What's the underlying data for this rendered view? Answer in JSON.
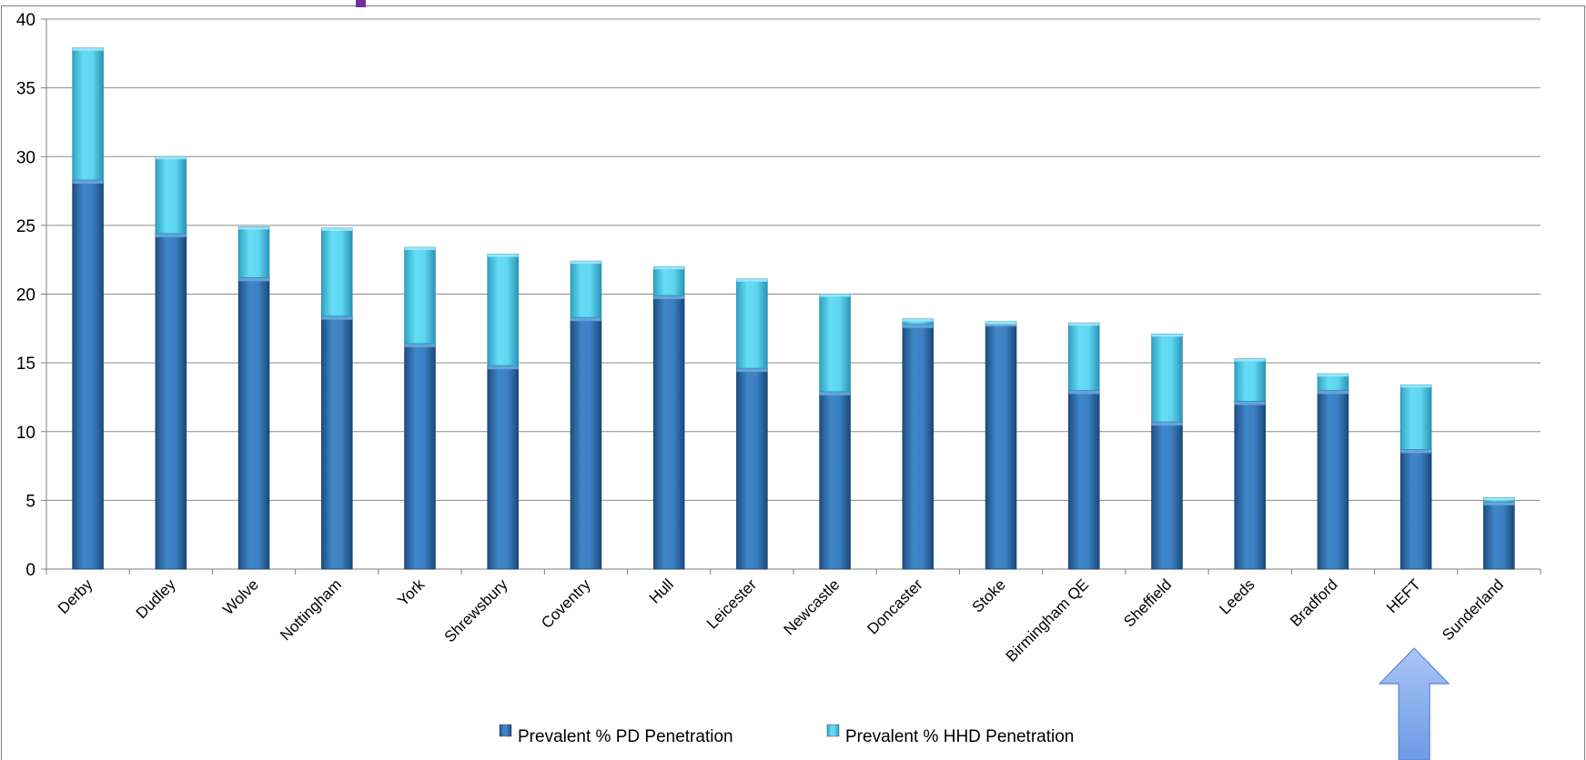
{
  "chart_data": {
    "type": "bar",
    "stacked": true,
    "title": "",
    "xlabel": "",
    "ylabel": "",
    "ylim": [
      0,
      40
    ],
    "yticks": [
      0,
      5,
      10,
      15,
      20,
      25,
      30,
      35,
      40
    ],
    "grid": true,
    "legend_position": "bottom",
    "categories": [
      "Derby",
      "Dudley",
      "Wolve",
      "Nottingham",
      "York",
      "Shrewsbury",
      "Coventry",
      "Hull",
      "Leicester",
      "Newcastle",
      "Doncaster",
      "Stoke",
      "Birmingham QE",
      "Sheffield",
      "Leeds",
      "Bradford",
      "HEFT",
      "Sunderland"
    ],
    "series": [
      {
        "name": "Prevalent % PD Penetration",
        "color": "#2e75b6",
        "values": [
          28.3,
          24.4,
          21.2,
          18.4,
          16.4,
          14.8,
          18.3,
          19.9,
          14.6,
          12.9,
          17.8,
          17.9,
          13.0,
          10.7,
          12.2,
          13.0,
          8.7,
          4.9
        ]
      },
      {
        "name": "Prevalent % HHD Penetration",
        "color": "#4fd0ee",
        "values": [
          9.6,
          5.6,
          3.7,
          6.4,
          7.0,
          8.1,
          4.1,
          2.1,
          6.5,
          7.1,
          0.4,
          0.1,
          4.9,
          6.4,
          3.1,
          1.2,
          4.7,
          0.3
        ]
      }
    ],
    "annotations": [
      {
        "type": "arrow",
        "shape": "block-arrow-up",
        "color": "#8fb4ef",
        "points_to": "HEFT"
      }
    ]
  }
}
